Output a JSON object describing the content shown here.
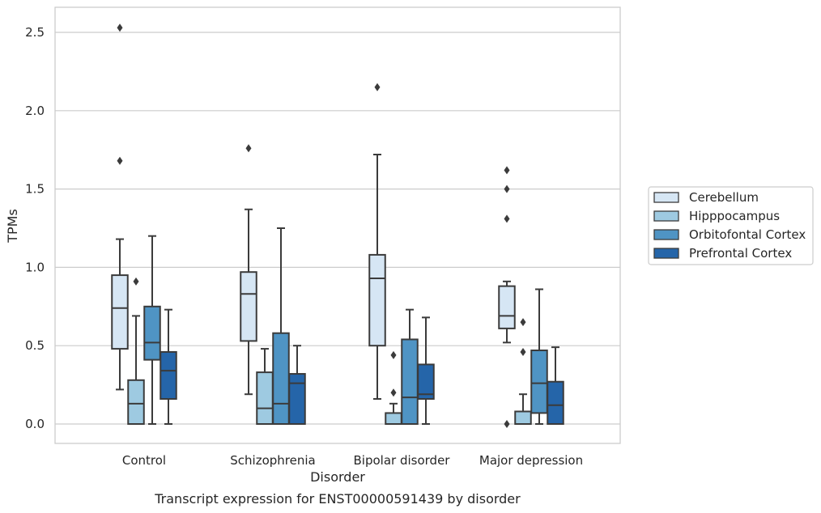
{
  "chart_data": {
    "type": "box",
    "title": "",
    "caption": "Transcript expression for ENST00000591439 by disorder",
    "xlabel": "Disorder",
    "ylabel": "TPMs",
    "ylim": [
      -0.12,
      2.66
    ],
    "yticks": [
      0.0,
      0.5,
      1.0,
      1.5,
      2.0,
      2.5
    ],
    "ytick_labels": [
      "0.0",
      "0.5",
      "1.0",
      "1.5",
      "2.0",
      "2.5"
    ],
    "grid": "horizontal",
    "legend_position": "right",
    "categories": [
      "Control",
      "Schizophrenia",
      "Bipolar disorder",
      "Major depression"
    ],
    "series": [
      {
        "name": "Cerebellum",
        "color": "#d6e6f4",
        "boxes": [
          {
            "whisker_low": 0.22,
            "q1": 0.48,
            "median": 0.74,
            "q3": 0.95,
            "whisker_high": 1.18,
            "outliers": [
              1.68,
              2.53
            ]
          },
          {
            "whisker_low": 0.19,
            "q1": 0.53,
            "median": 0.83,
            "q3": 0.97,
            "whisker_high": 1.37,
            "outliers": [
              1.76
            ]
          },
          {
            "whisker_low": 0.16,
            "q1": 0.5,
            "median": 0.93,
            "q3": 1.08,
            "whisker_high": 1.72,
            "outliers": [
              2.15
            ]
          },
          {
            "whisker_low": 0.52,
            "q1": 0.61,
            "median": 0.69,
            "q3": 0.88,
            "whisker_high": 0.91,
            "outliers": [
              0.0,
              1.31,
              1.5,
              1.62
            ]
          }
        ]
      },
      {
        "name": "Hipppocampus",
        "color": "#9ecae1",
        "boxes": [
          {
            "whisker_low": 0.0,
            "q1": 0.0,
            "median": 0.13,
            "q3": 0.28,
            "whisker_high": 0.69,
            "outliers": [
              0.91
            ]
          },
          {
            "whisker_low": 0.0,
            "q1": 0.0,
            "median": 0.1,
            "q3": 0.33,
            "whisker_high": 0.48,
            "outliers": []
          },
          {
            "whisker_low": 0.0,
            "q1": 0.0,
            "median": 0.0,
            "q3": 0.07,
            "whisker_high": 0.13,
            "outliers": [
              0.2,
              0.44
            ]
          },
          {
            "whisker_low": 0.0,
            "q1": 0.0,
            "median": 0.0,
            "q3": 0.08,
            "whisker_high": 0.19,
            "outliers": [
              0.46,
              0.65
            ]
          }
        ]
      },
      {
        "name": "Orbitofontal Cortex",
        "color": "#4f94c4",
        "boxes": [
          {
            "whisker_low": 0.0,
            "q1": 0.41,
            "median": 0.52,
            "q3": 0.75,
            "whisker_high": 1.2,
            "outliers": []
          },
          {
            "whisker_low": 0.0,
            "q1": 0.0,
            "median": 0.13,
            "q3": 0.58,
            "whisker_high": 1.25,
            "outliers": []
          },
          {
            "whisker_low": 0.0,
            "q1": 0.0,
            "median": 0.17,
            "q3": 0.54,
            "whisker_high": 0.73,
            "outliers": []
          },
          {
            "whisker_low": 0.0,
            "q1": 0.07,
            "median": 0.26,
            "q3": 0.47,
            "whisker_high": 0.86,
            "outliers": []
          }
        ]
      },
      {
        "name": "Prefrontal Cortex",
        "color": "#2565a9",
        "boxes": [
          {
            "whisker_low": 0.0,
            "q1": 0.16,
            "median": 0.34,
            "q3": 0.46,
            "whisker_high": 0.73,
            "outliers": []
          },
          {
            "whisker_low": 0.0,
            "q1": 0.0,
            "median": 0.26,
            "q3": 0.32,
            "whisker_high": 0.5,
            "outliers": []
          },
          {
            "whisker_low": 0.0,
            "q1": 0.16,
            "median": 0.19,
            "q3": 0.38,
            "whisker_high": 0.68,
            "outliers": []
          },
          {
            "whisker_low": 0.0,
            "q1": 0.0,
            "median": 0.12,
            "q3": 0.27,
            "whisker_high": 0.49,
            "outliers": []
          }
        ]
      }
    ],
    "colors": {
      "frame": "#cccccc",
      "grid": "#cccccc",
      "box_edge": "#3b3b3b",
      "whisker": "#3b3b3b",
      "outlier": "#3b3b3b"
    }
  }
}
